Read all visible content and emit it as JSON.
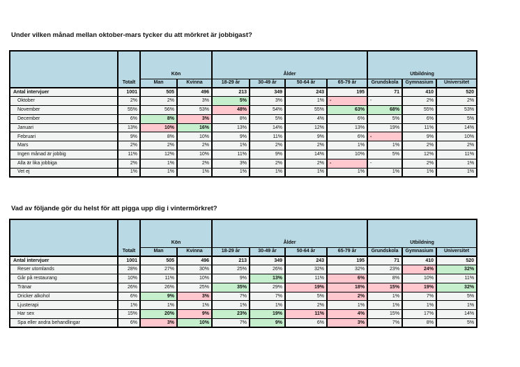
{
  "colors": {
    "header_blue": "#B9D9E4",
    "cell_gray": "#F2F3F3",
    "highlight_green": "#C6EFCE",
    "highlight_pink": "#FFC7CE",
    "border": "#000000"
  },
  "tables": [
    {
      "title": "Under vilken månad mellan oktober-mars tycker du att mörkret är jobbigast?",
      "total_label": "Totalt",
      "groups": [
        {
          "label": "Kön",
          "span": 2
        },
        {
          "label": "Ålder",
          "span": 4
        },
        {
          "label": "Utbildning",
          "span": 3
        }
      ],
      "columns": [
        "Man",
        "Kvinna",
        "18-29 år",
        "30-49 år",
        "50-64 år",
        "65-79 år",
        "Grundskola",
        "Gymnasium",
        "Universitet"
      ],
      "base_row": {
        "label": "Antal intervjuer",
        "values": [
          "1001",
          "505",
          "496",
          "213",
          "349",
          "243",
          "195",
          "71",
          "410",
          "520"
        ]
      },
      "rows": [
        {
          "label": "Oktober",
          "values": [
            "2%",
            "2%",
            "3%",
            "5%",
            "3%",
            "1%",
            "-",
            "-",
            "2%",
            "2%"
          ],
          "marks": [
            "",
            "",
            "",
            "g",
            "",
            "",
            "p",
            "",
            "",
            ""
          ]
        },
        {
          "label": "November",
          "values": [
            "55%",
            "56%",
            "53%",
            "48%",
            "54%",
            "55%",
            "63%",
            "68%",
            "55%",
            "53%"
          ],
          "marks": [
            "",
            "",
            "",
            "p",
            "",
            "",
            "g",
            "g",
            "",
            ""
          ]
        },
        {
          "label": "December",
          "values": [
            "6%",
            "8%",
            "3%",
            "8%",
            "5%",
            "4%",
            "6%",
            "5%",
            "6%",
            "5%"
          ],
          "marks": [
            "",
            "g",
            "p",
            "",
            "",
            "",
            "",
            "",
            "",
            ""
          ]
        },
        {
          "label": "Januari",
          "values": [
            "13%",
            "10%",
            "16%",
            "13%",
            "14%",
            "12%",
            "13%",
            "19%",
            "11%",
            "14%"
          ],
          "marks": [
            "",
            "p",
            "g",
            "",
            "",
            "",
            "",
            "",
            "",
            ""
          ]
        },
        {
          "label": "Februari",
          "values": [
            "9%",
            "8%",
            "10%",
            "9%",
            "11%",
            "9%",
            "6%",
            "-",
            "9%",
            "10%"
          ],
          "marks": [
            "",
            "",
            "",
            "",
            "",
            "",
            "",
            "p",
            "",
            ""
          ]
        },
        {
          "label": "Mars",
          "values": [
            "2%",
            "2%",
            "2%",
            "1%",
            "2%",
            "2%",
            "1%",
            "1%",
            "2%",
            "2%"
          ],
          "marks": [
            "",
            "",
            "",
            "",
            "",
            "",
            "",
            "",
            "",
            ""
          ]
        },
        {
          "label": "Ingen månad är jobbig",
          "values": [
            "11%",
            "12%",
            "10%",
            "11%",
            "9%",
            "14%",
            "10%",
            "5%",
            "12%",
            "11%"
          ],
          "marks": [
            "",
            "",
            "",
            "",
            "",
            "",
            "",
            "",
            "",
            ""
          ]
        },
        {
          "label": "Alla är lika jobbiga",
          "values": [
            "2%",
            "1%",
            "2%",
            "3%",
            "2%",
            "2%",
            "-",
            "-",
            "2%",
            "1%"
          ],
          "marks": [
            "",
            "",
            "",
            "",
            "",
            "",
            "p",
            "",
            "",
            ""
          ]
        },
        {
          "label": "Vet ej",
          "values": [
            "1%",
            "1%",
            "1%",
            "1%",
            "1%",
            "1%",
            "1%",
            "1%",
            "1%",
            "1%"
          ],
          "marks": [
            "",
            "",
            "",
            "",
            "",
            "",
            "",
            "",
            "",
            ""
          ]
        }
      ]
    },
    {
      "title": "Vad av följande gör du helst för att pigga upp dig i vintermörkret?",
      "total_label": "Totalt",
      "groups": [
        {
          "label": "Kön",
          "span": 2
        },
        {
          "label": "Ålder",
          "span": 4
        },
        {
          "label": "Utbildning",
          "span": 3
        }
      ],
      "columns": [
        "Man",
        "Kvinna",
        "18-29 år",
        "30-49 år",
        "50-64 år",
        "65-79 år",
        "Grundskola",
        "Gymnasium",
        "Universitet"
      ],
      "base_row": {
        "label": "Antal intervjuer",
        "values": [
          "1001",
          "505",
          "496",
          "213",
          "349",
          "243",
          "195",
          "71",
          "410",
          "520"
        ]
      },
      "rows": [
        {
          "label": "Reser utomlands",
          "values": [
            "28%",
            "27%",
            "30%",
            "25%",
            "26%",
            "32%",
            "32%",
            "23%",
            "24%",
            "32%"
          ],
          "marks": [
            "",
            "",
            "",
            "",
            "",
            "",
            "",
            "",
            "p",
            "g"
          ]
        },
        {
          "label": "Går på restaurang",
          "values": [
            "10%",
            "11%",
            "10%",
            "9%",
            "13%",
            "11%",
            "6%",
            "8%",
            "10%",
            "11%"
          ],
          "marks": [
            "",
            "",
            "",
            "",
            "g",
            "",
            "p",
            "",
            "",
            ""
          ]
        },
        {
          "label": "Tränar",
          "values": [
            "26%",
            "26%",
            "25%",
            "35%",
            "29%",
            "19%",
            "18%",
            "15%",
            "19%",
            "32%"
          ],
          "marks": [
            "",
            "",
            "",
            "g",
            "",
            "p",
            "p",
            "p",
            "p",
            "g"
          ]
        },
        {
          "label": "Dricker alkohol",
          "values": [
            "6%",
            "9%",
            "3%",
            "7%",
            "7%",
            "5%",
            "2%",
            "1%",
            "7%",
            "5%"
          ],
          "marks": [
            "",
            "g",
            "p",
            "",
            "",
            "",
            "p",
            "",
            "",
            ""
          ]
        },
        {
          "label": "Ljusterapi",
          "values": [
            "1%",
            "1%",
            "1%",
            "1%",
            "1%",
            "2%",
            "1%",
            "1%",
            "1%",
            "1%"
          ],
          "marks": [
            "",
            "",
            "",
            "",
            "",
            "",
            "",
            "",
            "",
            ""
          ]
        },
        {
          "label": "Har sex",
          "values": [
            "15%",
            "20%",
            "9%",
            "23%",
            "19%",
            "11%",
            "4%",
            "15%",
            "17%",
            "14%"
          ],
          "marks": [
            "",
            "g",
            "p",
            "g",
            "g",
            "p",
            "p",
            "",
            "",
            ""
          ]
        },
        {
          "label": "Spa eller andra behandlingar",
          "values": [
            "6%",
            "3%",
            "10%",
            "7%",
            "9%",
            "6%",
            "3%",
            "7%",
            "8%",
            "5%"
          ],
          "marks": [
            "",
            "p",
            "g",
            "",
            "g",
            "",
            "p",
            "",
            "",
            ""
          ]
        }
      ]
    }
  ]
}
